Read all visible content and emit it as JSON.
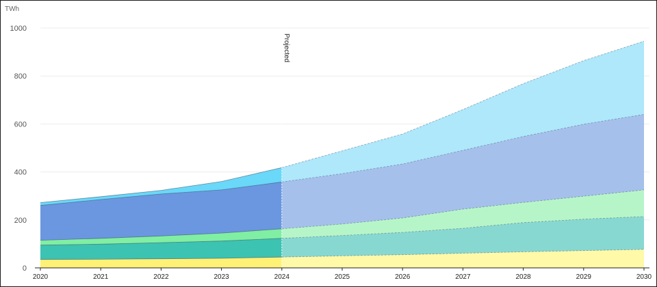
{
  "chart_data": {
    "type": "area",
    "stacked": true,
    "y_unit": "TWh",
    "x": [
      2020,
      2021,
      2022,
      2023,
      2024,
      2025,
      2026,
      2027,
      2028,
      2029,
      2030
    ],
    "x_tick_labels": [
      "2020",
      "2021",
      "2022",
      "2023",
      "2024",
      "2025",
      "2026",
      "2027",
      "2028",
      "2029",
      "2030"
    ],
    "ylim": [
      0,
      1000
    ],
    "y_ticks": [
      0,
      200,
      400,
      600,
      800,
      1000
    ],
    "grid": true,
    "legend": "none",
    "projected_from": 2024,
    "annotation": "Projected",
    "series": [
      {
        "values": [
          35,
          36,
          38,
          40,
          45,
          50,
          55,
          61,
          67,
          72,
          77
        ],
        "color": "#fff176",
        "color_projected": "#fff9a8"
      },
      {
        "values": [
          60,
          63,
          67,
          72,
          78,
          85,
          93,
          104,
          122,
          131,
          137
        ],
        "color": "#3cc3b2",
        "color_projected": "#88d8d2"
      },
      {
        "values": [
          20,
          24,
          28,
          33,
          40,
          48,
          60,
          80,
          84,
          96,
          111
        ],
        "color": "#80eea3",
        "color_projected": "#b6f5c8"
      },
      {
        "values": [
          145,
          162,
          175,
          180,
          195,
          210,
          225,
          245,
          275,
          300,
          315
        ],
        "color": "#6b97e0",
        "color_projected": "#a6c0ec"
      },
      {
        "values": [
          12,
          12,
          15,
          35,
          60,
          95,
          125,
          170,
          220,
          265,
          305
        ],
        "color": "#6ad8f8",
        "color_projected": "#aee8fa"
      }
    ]
  }
}
